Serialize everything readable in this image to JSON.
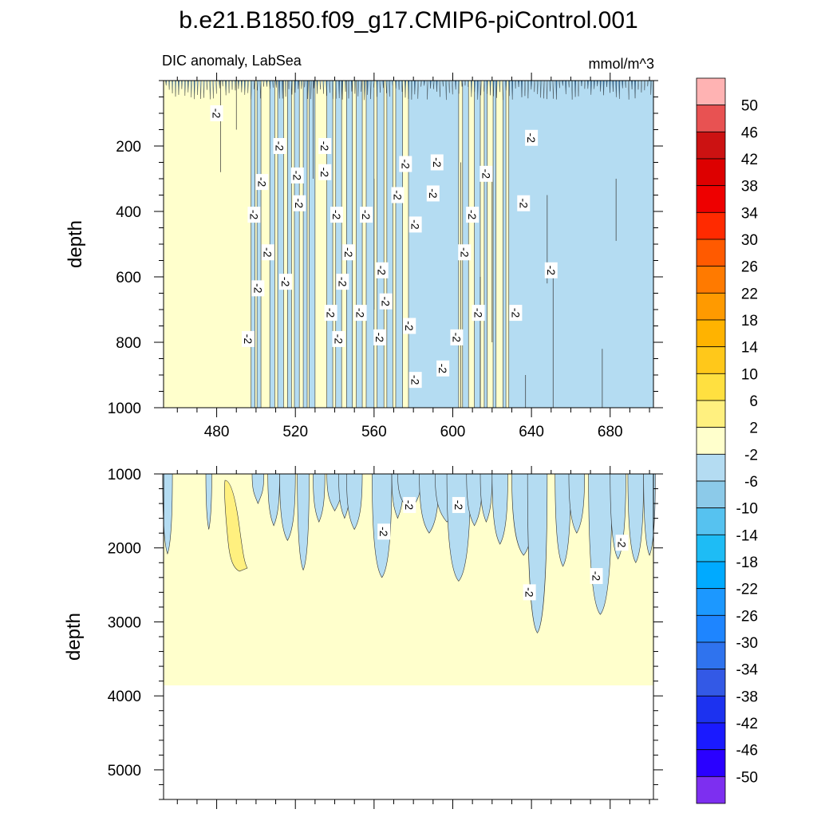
{
  "chart_data": {
    "type": "contour",
    "title": "b.e21.B1850.f09_g17.CMIP6-piControl.001",
    "subtitle_left": "DIC anomaly, LabSea",
    "subtitle_right": "mmol/m^3",
    "xlabel": "",
    "ylabel": "depth",
    "xlim": [
      453,
      702
    ],
    "x_ticks": [
      480,
      520,
      560,
      600,
      640,
      680
    ],
    "x_tick_labels": [
      "480",
      "520",
      "560",
      "600",
      "640",
      "680"
    ],
    "panels": [
      {
        "name": "upper",
        "ylim": [
          0,
          1000
        ],
        "y_ticks": [
          200,
          400,
          600,
          800,
          1000
        ],
        "y_tick_labels": [
          "200",
          "400",
          "600",
          "800",
          "1000"
        ],
        "contour_labels": [
          {
            "x": 480,
            "y": 100,
            "text": "-2"
          },
          {
            "x": 512,
            "y": 200,
            "text": "-2"
          },
          {
            "x": 535,
            "y": 200,
            "text": "-2"
          },
          {
            "x": 640,
            "y": 175,
            "text": "-2"
          },
          {
            "x": 503,
            "y": 310,
            "text": "-2"
          },
          {
            "x": 521,
            "y": 290,
            "text": "-2"
          },
          {
            "x": 535,
            "y": 280,
            "text": "-2"
          },
          {
            "x": 576,
            "y": 255,
            "text": "-2"
          },
          {
            "x": 592,
            "y": 250,
            "text": "-2"
          },
          {
            "x": 617,
            "y": 285,
            "text": "-2"
          },
          {
            "x": 499,
            "y": 410,
            "text": "-2"
          },
          {
            "x": 522,
            "y": 375,
            "text": "-2"
          },
          {
            "x": 541,
            "y": 410,
            "text": "-2"
          },
          {
            "x": 556,
            "y": 410,
            "text": "-2"
          },
          {
            "x": 572,
            "y": 350,
            "text": "-2"
          },
          {
            "x": 590,
            "y": 345,
            "text": "-2"
          },
          {
            "x": 581,
            "y": 440,
            "text": "-2"
          },
          {
            "x": 610,
            "y": 410,
            "text": "-2"
          },
          {
            "x": 636,
            "y": 375,
            "text": "-2"
          },
          {
            "x": 506,
            "y": 525,
            "text": "-2"
          },
          {
            "x": 547,
            "y": 525,
            "text": "-2"
          },
          {
            "x": 606,
            "y": 525,
            "text": "-2"
          },
          {
            "x": 650,
            "y": 580,
            "text": "-2"
          },
          {
            "x": 501,
            "y": 635,
            "text": "-2"
          },
          {
            "x": 515,
            "y": 615,
            "text": "-2"
          },
          {
            "x": 544,
            "y": 615,
            "text": "-2"
          },
          {
            "x": 564,
            "y": 580,
            "text": "-2"
          },
          {
            "x": 538,
            "y": 710,
            "text": "-2"
          },
          {
            "x": 553,
            "y": 710,
            "text": "-2"
          },
          {
            "x": 566,
            "y": 675,
            "text": "-2"
          },
          {
            "x": 613,
            "y": 710,
            "text": "-2"
          },
          {
            "x": 632,
            "y": 710,
            "text": "-2"
          },
          {
            "x": 496,
            "y": 790,
            "text": "-2"
          },
          {
            "x": 542,
            "y": 790,
            "text": "-2"
          },
          {
            "x": 563,
            "y": 785,
            "text": "-2"
          },
          {
            "x": 578,
            "y": 750,
            "text": "-2"
          },
          {
            "x": 602,
            "y": 785,
            "text": "-2"
          },
          {
            "x": 595,
            "y": 880,
            "text": "-2"
          },
          {
            "x": 581,
            "y": 915,
            "text": "-2"
          }
        ]
      },
      {
        "name": "lower",
        "ylim": [
          1000,
          5400
        ],
        "y_ticks": [
          1000,
          2000,
          3000,
          4000,
          5000
        ],
        "y_tick_labels": [
          "1000",
          "2000",
          "3000",
          "4000",
          "5000"
        ],
        "ocean_bottom": 3860,
        "contour_labels": [
          {
            "x": 578,
            "y": 1420,
            "text": "-2"
          },
          {
            "x": 603,
            "y": 1420,
            "text": "-2"
          },
          {
            "x": 565,
            "y": 1780,
            "text": "-2"
          },
          {
            "x": 686,
            "y": 1930,
            "text": "-2"
          },
          {
            "x": 673,
            "y": 2380,
            "text": "-2"
          },
          {
            "x": 639,
            "y": 2600,
            "text": "-2"
          }
        ]
      }
    ],
    "colorbar": {
      "levels": [
        50,
        46,
        42,
        38,
        34,
        30,
        26,
        22,
        18,
        14,
        10,
        6,
        2,
        -2,
        -6,
        -10,
        -14,
        -18,
        -22,
        -26,
        -30,
        -34,
        -38,
        -42,
        -46,
        -50
      ],
      "labels": [
        "50",
        "46",
        "42",
        "38",
        "34",
        "30",
        "26",
        "22",
        "18",
        "14",
        "10",
        "6",
        "2",
        "-2",
        "-6",
        "-10",
        "-14",
        "-18",
        "-22",
        "-26",
        "-30",
        "-34",
        "-38",
        "-42",
        "-46",
        "-50"
      ],
      "colors": [
        "#ffb3b3",
        "#e85252",
        "#cc1212",
        "#dd0000",
        "#ee0000",
        "#ff2a00",
        "#ff5a00",
        "#ff7a00",
        "#ff9a00",
        "#ffb300",
        "#ffc81a",
        "#ffe040",
        "#fff07f",
        "#ffffcc",
        "#b4dcf2",
        "#8ccae9",
        "#56c2f0",
        "#1ebcf5",
        "#00aaff",
        "#1c98ff",
        "#1e85ff",
        "#2f73ee",
        "#3359e6",
        "#1c32f0",
        "#1a1aff",
        "#2a00ff",
        "#7d2ff0"
      ]
    },
    "fill_colors": {
      "neg": "#b4dcf2",
      "pos": "#ffffcc",
      "pos2": "#fff07f",
      "deep": "#5aa8d8",
      "empty": "#ffffff"
    }
  }
}
